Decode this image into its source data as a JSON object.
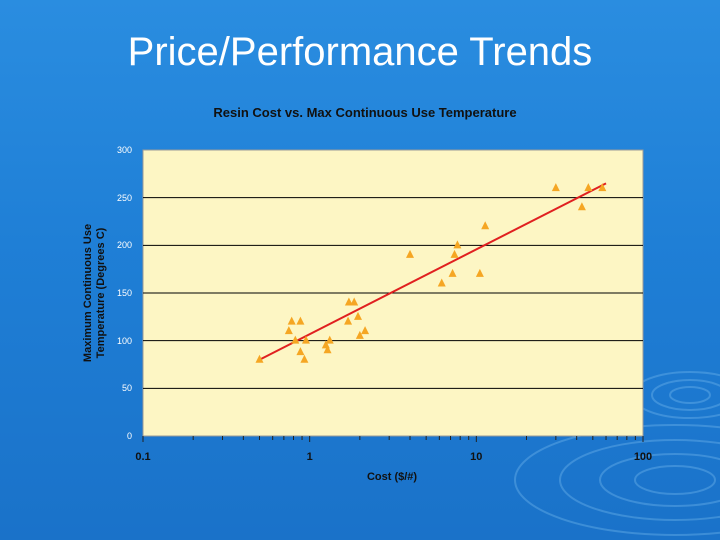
{
  "slide": {
    "title": "Price/Performance Trends"
  },
  "colors": {
    "background": "#1f7fd6",
    "plot_area": "#fdf6c4",
    "marker": "#f5a623",
    "trendline": "#e02020",
    "gridline": "#000000"
  },
  "chart_data": {
    "type": "scatter",
    "title": "Resin Cost vs. Max Continuous Use Temperature",
    "xlabel": "Cost ($/#)",
    "ylabel_lines": [
      "Maximum Continuous Use",
      "Temperature (Degrees C)"
    ],
    "xscale": "log",
    "xlim": [
      0.1,
      100
    ],
    "ylim": [
      0,
      300
    ],
    "xticks": [
      "0.1",
      "1",
      "10",
      "100"
    ],
    "yticks": [
      "0",
      "50",
      "100",
      "150",
      "200",
      "250",
      "300"
    ],
    "grid": "horizontal",
    "marker": "triangle",
    "points": [
      [
        0.5,
        80
      ],
      [
        0.75,
        110
      ],
      [
        0.78,
        120
      ],
      [
        0.82,
        100
      ],
      [
        0.88,
        120
      ],
      [
        0.88,
        88
      ],
      [
        0.93,
        80
      ],
      [
        0.95,
        100
      ],
      [
        1.25,
        95
      ],
      [
        1.28,
        90
      ],
      [
        1.32,
        100
      ],
      [
        1.7,
        120
      ],
      [
        1.72,
        140
      ],
      [
        1.85,
        140
      ],
      [
        1.95,
        125
      ],
      [
        2.0,
        105
      ],
      [
        2.15,
        110
      ],
      [
        4.0,
        190
      ],
      [
        6.2,
        160
      ],
      [
        7.2,
        170
      ],
      [
        7.4,
        190
      ],
      [
        7.7,
        200
      ],
      [
        10.5,
        170
      ],
      [
        11.3,
        220
      ],
      [
        30,
        260
      ],
      [
        43,
        240
      ],
      [
        47,
        260
      ],
      [
        57,
        260
      ]
    ],
    "trendline": {
      "from": [
        0.5,
        80
      ],
      "to": [
        60,
        265
      ]
    }
  }
}
